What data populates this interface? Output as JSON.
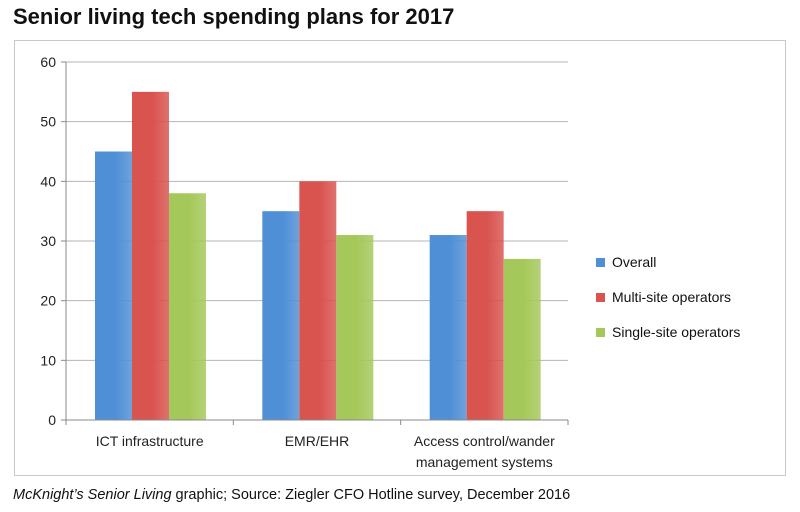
{
  "title": "Senior living tech spending plans for 2017",
  "caption": {
    "publication": "McKnight’s Senior Living",
    "rest": " graphic; Source: Ziegler CFO Hotline survey, December 2016"
  },
  "colors": {
    "overall": "#4f8fd6",
    "multi": "#d9534f",
    "single": "#a5c85a"
  },
  "chart_data": {
    "type": "bar",
    "title": "Senior living tech spending plans for 2017",
    "categories": [
      [
        "ICT infrastructure"
      ],
      [
        "EMR/EHR"
      ],
      [
        "Access control/wander",
        "management systems"
      ]
    ],
    "series": [
      {
        "name": "Overall",
        "values": [
          45,
          35,
          31
        ],
        "color": "#4f8fd6"
      },
      {
        "name": "Multi-site operators",
        "values": [
          55,
          40,
          35
        ],
        "color": "#d9534f"
      },
      {
        "name": "Single-site operators",
        "values": [
          38,
          31,
          27
        ],
        "color": "#a5c85a"
      }
    ],
    "ylim": [
      0,
      60
    ],
    "yticks": [
      0,
      10,
      20,
      30,
      40,
      50,
      60
    ],
    "grid": true,
    "legend": "right"
  }
}
